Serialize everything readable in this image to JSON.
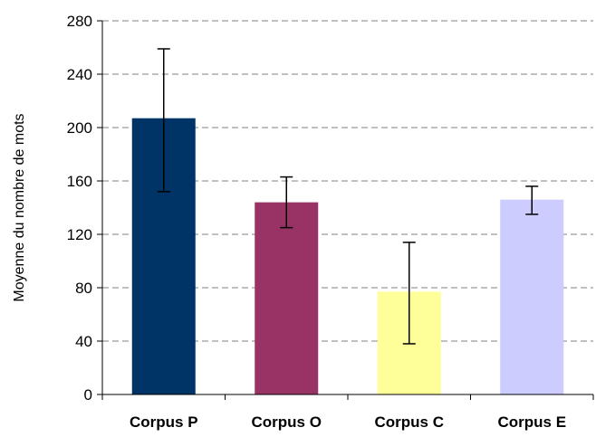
{
  "chart_data": {
    "type": "bar",
    "title": "",
    "xlabel": "",
    "ylabel": "Moyenne du nombre de mots",
    "categories": [
      "Corpus P",
      "Corpus O",
      "Corpus C",
      "Corpus E"
    ],
    "values": [
      207,
      144,
      77,
      146
    ],
    "error_low": [
      152,
      125,
      38,
      135
    ],
    "error_high": [
      259,
      163,
      114,
      156
    ],
    "colors": [
      "#003366",
      "#993366",
      "#FFFF99",
      "#CCCCFF"
    ],
    "ylim": [
      0,
      280
    ],
    "yticks": [
      0,
      40,
      80,
      120,
      160,
      200,
      240,
      280
    ],
    "ytick_labels": [
      "0",
      "40",
      "80",
      "120",
      "160",
      "200",
      "240",
      "280"
    ],
    "grid": true,
    "legend": "none"
  }
}
